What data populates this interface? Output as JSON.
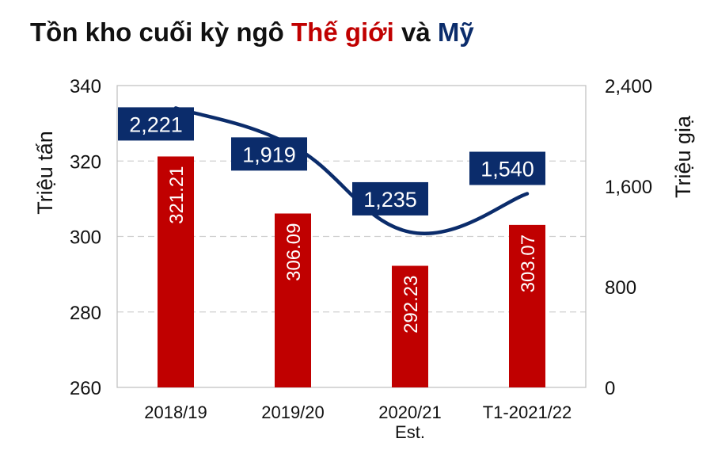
{
  "title": {
    "part1": "Tồn kho cuối kỳ ngô ",
    "part2": "Thế giới",
    "part3": " và ",
    "part4": "Mỹ"
  },
  "colors": {
    "bar": "#c00000",
    "line": "#0b2c6b",
    "label_box": "#0b2c6b",
    "grid": "#d0d0d0",
    "title_red": "#c00000",
    "title_blue": "#0b2c6b"
  },
  "chart_data": {
    "type": "bar",
    "categories": [
      "2018/19",
      "2019/20",
      "2020/21\nEst.",
      "T1-2021/22"
    ],
    "series": [
      {
        "name": "Thế giới",
        "type": "bar",
        "axis": "left",
        "values": [
          321.21,
          306.09,
          292.23,
          303.07
        ],
        "labels": [
          "321.21",
          "306.09",
          "292.23",
          "303.07"
        ]
      },
      {
        "name": "Mỹ",
        "type": "line",
        "axis": "right",
        "values": [
          2221,
          1919,
          1235,
          1540
        ],
        "labels": [
          "2,221",
          "1,919",
          "1,235",
          "1,540"
        ]
      }
    ],
    "ylabel": "Triệu tấn",
    "ylabel_right": "Triệu giạ",
    "ylim": [
      260,
      340
    ],
    "ylim_right": [
      0,
      2400
    ],
    "yticks": [
      "340",
      "320",
      "300",
      "280",
      "260"
    ],
    "yticks_right": [
      "2,400",
      "1,600",
      "800",
      "0"
    ],
    "grid": true
  }
}
